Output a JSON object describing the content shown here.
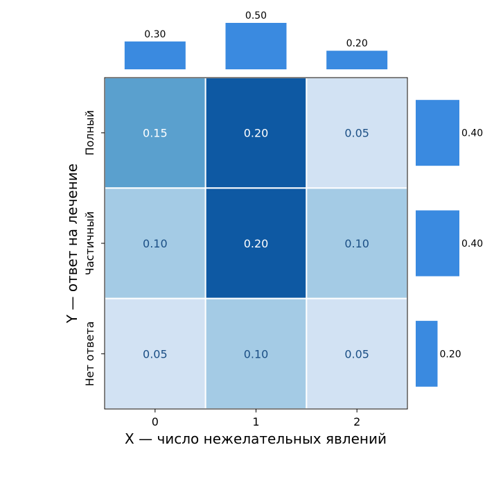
{
  "chart_data": {
    "type": "heatmap",
    "title": "",
    "xlabel": "X — число нежелательных явлений",
    "ylabel": "Y — ответ на лечение",
    "x_categories": [
      "0",
      "1",
      "2"
    ],
    "y_categories": [
      "Полный",
      "Частичный",
      "Нет ответа"
    ],
    "values": [
      [
        0.15,
        0.2,
        0.05
      ],
      [
        0.1,
        0.2,
        0.1
      ],
      [
        0.05,
        0.1,
        0.05
      ]
    ],
    "cell_labels": [
      [
        "0.15",
        "0.20",
        "0.05"
      ],
      [
        "0.10",
        "0.20",
        "0.10"
      ],
      [
        "0.05",
        "0.10",
        "0.05"
      ]
    ],
    "color_scale": {
      "low": "#d2e2f3",
      "mid": "#8dbfde",
      "high": "#0e59a3",
      "mid2": "#4190c6"
    },
    "label_colors": {
      "dark_cell": "#ffffff",
      "light_cell": "#1b4f85"
    },
    "marginal_x": {
      "values": [
        0.3,
        0.5,
        0.2
      ],
      "labels": [
        "0.30",
        "0.50",
        "0.20"
      ],
      "color": "#3a8ae0",
      "max": 0.5
    },
    "marginal_y": {
      "values": [
        0.4,
        0.4,
        0.2
      ],
      "labels": [
        "0.40",
        "0.40",
        "0.20"
      ],
      "color": "#3a8ae0",
      "max": 0.4
    },
    "grid": false
  }
}
